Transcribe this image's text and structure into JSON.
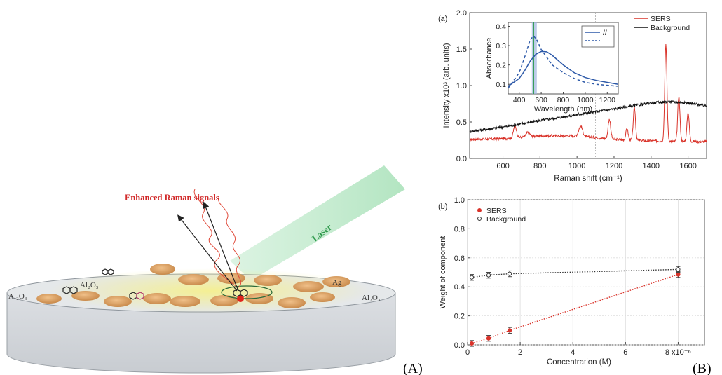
{
  "panel_labels": {
    "left": "(A)",
    "right": "(B)"
  },
  "schematic": {
    "enhanced_label": "Enhanced Raman signals",
    "laser_label": "Laser",
    "al2o3_left": "Al₂O₃",
    "al2o3_center": "Al₂O₃",
    "al2o3_right": "Al₂O₃",
    "ag_label": "Ag"
  },
  "chart_data": [
    {
      "type": "line",
      "panel_label": "(a)",
      "xlabel": "Raman shift (cm⁻¹)",
      "ylabel": "Intensity x10³ (arb. units)",
      "xlim": [
        420,
        1700
      ],
      "ylim": [
        0,
        2.0
      ],
      "xticks": [
        600,
        800,
        1000,
        1200,
        1400,
        1600
      ],
      "yticks": [
        0.0,
        0.5,
        1.0,
        1.5,
        2.0
      ],
      "ytick_labels": [
        "0.0",
        "0.5",
        "1.0",
        "1.5",
        "2.0"
      ],
      "dashed_markers_x": [
        600,
        1100,
        1600
      ],
      "legend_position": "top-right",
      "series": [
        {
          "name": "SERS",
          "color": "#d9332a",
          "baseline": [
            [
              420,
              0.26
            ],
            [
              600,
              0.27
            ],
            [
              800,
              0.31
            ],
            [
              1000,
              0.31
            ],
            [
              1200,
              0.26
            ],
            [
              1400,
              0.24
            ],
            [
              1700,
              0.23
            ]
          ],
          "peaks": [
            [
              665,
              0.17,
              8
            ],
            [
              735,
              0.06,
              10
            ],
            [
              1020,
              0.14,
              10
            ],
            [
              1175,
              0.27,
              7
            ],
            [
              1270,
              0.16,
              6
            ],
            [
              1310,
              0.45,
              6
            ],
            [
              1480,
              1.32,
              6
            ],
            [
              1550,
              0.62,
              6
            ],
            [
              1600,
              0.4,
              6
            ]
          ]
        },
        {
          "name": "Background",
          "color": "#111111",
          "baseline": [
            [
              420,
              0.37
            ],
            [
              600,
              0.43
            ],
            [
              800,
              0.52
            ],
            [
              1000,
              0.6
            ],
            [
              1200,
              0.68
            ],
            [
              1400,
              0.76
            ],
            [
              1500,
              0.78
            ],
            [
              1600,
              0.76
            ],
            [
              1700,
              0.72
            ]
          ],
          "peaks": []
        }
      ],
      "inset": {
        "xlabel": "Wavelength (nm)",
        "ylabel": "Absorbance",
        "xlim": [
          300,
          1300
        ],
        "ylim": [
          0.05,
          0.42
        ],
        "xticks": [
          400,
          600,
          800,
          1000,
          1200
        ],
        "yticks": [
          0.1,
          0.2,
          0.3,
          0.4
        ],
        "ytick_labels": [
          "0.1",
          "0.2",
          "0.3",
          "0.4"
        ],
        "band_nm": [
          515,
          560
        ],
        "vertical_line_nm": 532,
        "legend_position": "top-right",
        "series": [
          {
            "name": "//",
            "style": "solid",
            "color": "#2d59a8",
            "points": [
              [
                300,
                0.09
              ],
              [
                400,
                0.13
              ],
              [
                450,
                0.17
              ],
              [
                500,
                0.22
              ],
              [
                550,
                0.255
              ],
              [
                600,
                0.27
              ],
              [
                650,
                0.268
              ],
              [
                700,
                0.25
              ],
              [
                800,
                0.2
              ],
              [
                900,
                0.16
              ],
              [
                1000,
                0.135
              ],
              [
                1100,
                0.12
              ],
              [
                1200,
                0.11
              ],
              [
                1300,
                0.1
              ]
            ]
          },
          {
            "name": "⊥",
            "style": "dashed",
            "color": "#2d59a8",
            "points": [
              [
                300,
                0.08
              ],
              [
                400,
                0.16
              ],
              [
                450,
                0.24
              ],
              [
                500,
                0.33
              ],
              [
                530,
                0.35
              ],
              [
                560,
                0.33
              ],
              [
                600,
                0.28
              ],
              [
                700,
                0.2
              ],
              [
                800,
                0.16
              ],
              [
                900,
                0.13
              ],
              [
                1000,
                0.11
              ],
              [
                1100,
                0.1
              ],
              [
                1200,
                0.095
              ],
              [
                1300,
                0.09
              ]
            ]
          }
        ]
      }
    },
    {
      "type": "scatter",
      "panel_label": "(b)",
      "xlabel": "Concentration (M)",
      "ylabel": "Weight of component",
      "xlim": [
        0,
        9
      ],
      "ylim": [
        0,
        1.0
      ],
      "xticks": [
        0,
        2,
        4,
        6,
        8
      ],
      "xtick_labels": [
        "0",
        "2",
        "4",
        "6",
        "8 x10⁻⁶"
      ],
      "yticks": [
        0.0,
        0.2,
        0.4,
        0.6,
        0.8,
        1.0
      ],
      "ytick_labels": [
        "0.0",
        "0.2",
        "0.4",
        "0.6",
        "0.8",
        "1.0"
      ],
      "grid": true,
      "legend_position": "top-left",
      "series": [
        {
          "name": "SERS",
          "marker": "filled",
          "color": "#d9332a",
          "x": [
            0.16,
            0.8,
            1.6,
            8.0
          ],
          "y": [
            0.01,
            0.045,
            0.1,
            0.485
          ],
          "err": [
            0.02,
            0.02,
            0.02,
            0.02
          ]
        },
        {
          "name": "Background",
          "marker": "open",
          "color": "#333333",
          "x": [
            0.16,
            0.8,
            1.6,
            8.0
          ],
          "y": [
            0.465,
            0.48,
            0.49,
            0.52
          ],
          "err": [
            0.02,
            0.02,
            0.02,
            0.02
          ]
        }
      ]
    }
  ]
}
